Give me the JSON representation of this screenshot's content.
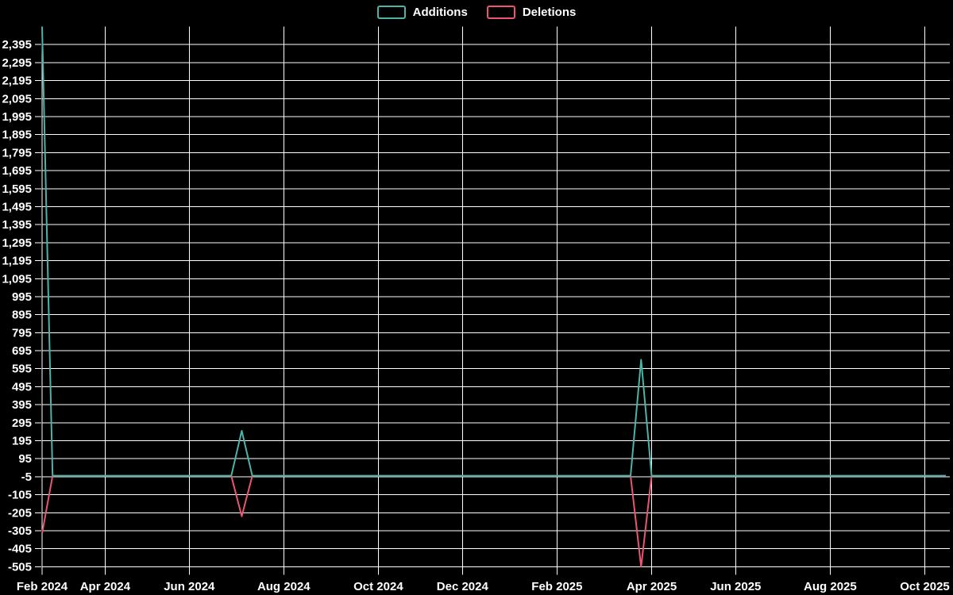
{
  "page": {
    "background": "#000000",
    "grid_color": "#ffffff",
    "text_color": "#ffffff"
  },
  "legend": {
    "items": [
      {
        "label": "Additions",
        "color": "#4cb3a8"
      },
      {
        "label": "Deletions",
        "color": "#ea5571"
      }
    ]
  },
  "chart_data": {
    "type": "line",
    "title": "",
    "legend_position": "top-center",
    "grid": true,
    "background": "#000000",
    "x_axis": {
      "unit": "week",
      "num_points": 87,
      "tick_indices": [
        0,
        6,
        14,
        23,
        32,
        40,
        49,
        58,
        66,
        75,
        84
      ],
      "tick_labels": [
        "Feb 2024",
        "Apr 2024",
        "Jun 2024",
        "Aug 2024",
        "Oct 2024",
        "Dec 2024",
        "Feb 2025",
        "Apr 2025",
        "Jun 2025",
        "Aug 2025",
        "Oct 2025"
      ]
    },
    "y_axis": {
      "min": -505,
      "max": 2495,
      "step": 100,
      "tick_labels": [
        "2,395",
        "2,295",
        "2,195",
        "2,095",
        "1,995",
        "1,895",
        "1,795",
        "1,695",
        "1,595",
        "1,495",
        "1,395",
        "1,295",
        "1,195",
        "1,095",
        "995",
        "895",
        "795",
        "695",
        "595",
        "495",
        "395",
        "295",
        "195",
        "95",
        "-5",
        "-105",
        "-205",
        "-305",
        "-405",
        "-505"
      ]
    },
    "series": [
      {
        "name": "Additions",
        "color": "#4cb3a8",
        "baseline_value": 0,
        "points_nonzero": {
          "0": 2495,
          "19": 250,
          "57": 645
        }
      },
      {
        "name": "Deletions",
        "color": "#ea5571",
        "baseline_value": 0,
        "points_nonzero": {
          "0": -320,
          "19": -225,
          "57": -505
        }
      }
    ]
  }
}
